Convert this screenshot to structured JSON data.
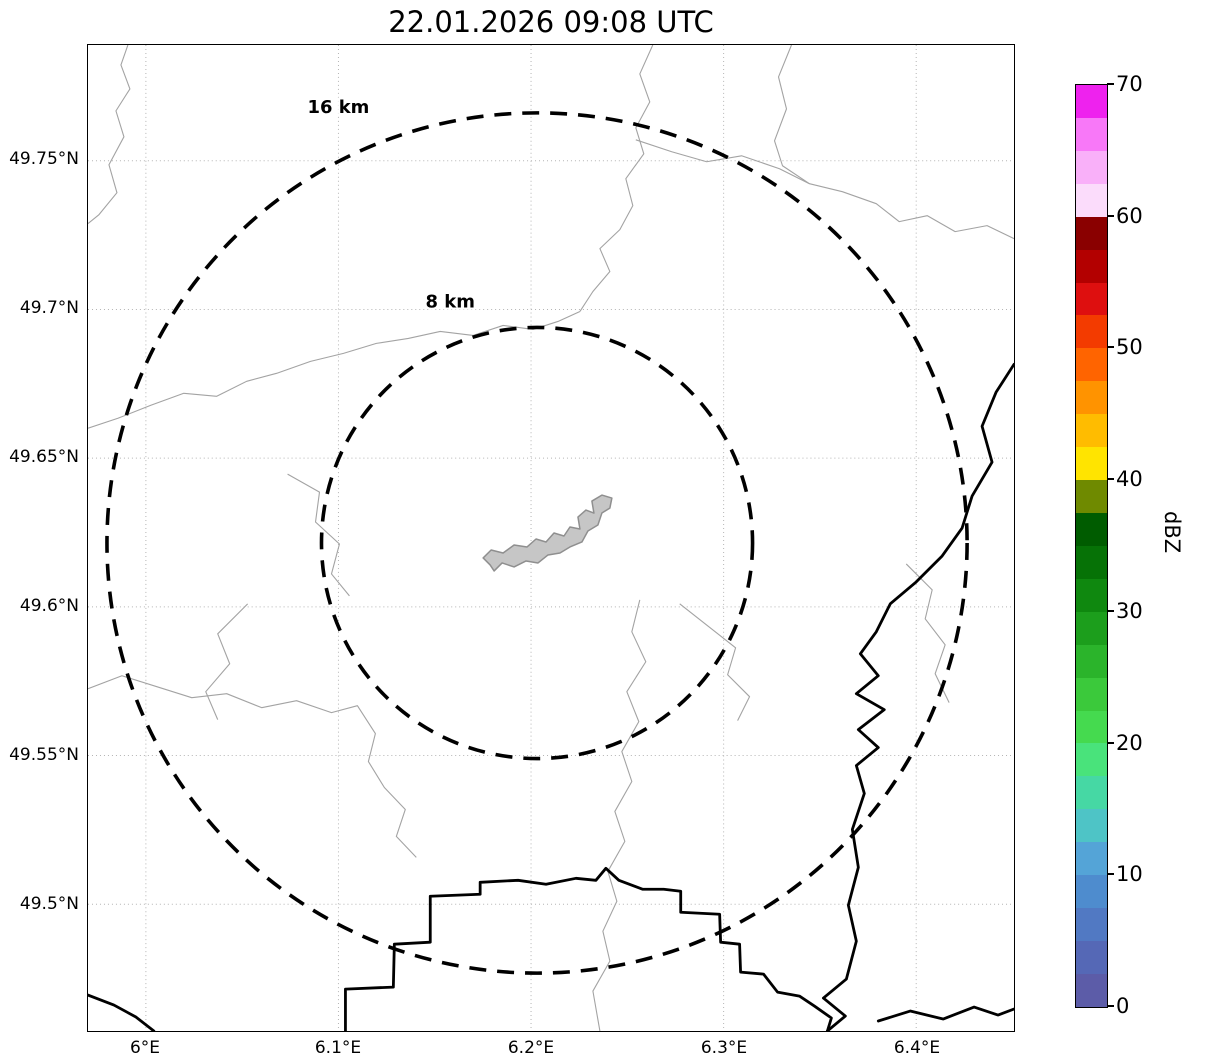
{
  "chart_data": {
    "type": "heatmap",
    "title": "22.01.2026 09:08 UTC",
    "subtitle": "",
    "description": "Weather radar reflectivity display over a lat/lon map; no reflectivity echoes visible (clear image). Dashed range rings at 8 km and 16 km around radar site near 6.2E / 49.62N, gray urban boundary polygon at center, thin gray administrative borders and thick black country-border/river lines.",
    "x_ticks": [
      "6°E",
      "6.1°E",
      "6.2°E",
      "6.3°E",
      "6.4°E"
    ],
    "y_ticks": [
      "49.75°N",
      "49.7°N",
      "49.65°N",
      "49.6°N",
      "49.55°N",
      "49.5°N"
    ],
    "grid": true,
    "range_rings": [
      {
        "label": "16 km",
        "radius_km": 16
      },
      {
        "label": "8 km",
        "radius_km": 8
      }
    ],
    "colorbar": {
      "label": "dBZ",
      "min": 0,
      "max": 70,
      "ticks": [
        70,
        60,
        50,
        40,
        30,
        20,
        10,
        0
      ],
      "step_dbz": 2.5,
      "colors_bottom_to_top": [
        "#5c5ca8",
        "#5568b6",
        "#5179c3",
        "#4e8cce",
        "#54a4d7",
        "#4ec4c6",
        "#46d8a4",
        "#49e37b",
        "#45da4f",
        "#3bc93b",
        "#2bb42b",
        "#1c9e1c",
        "#0f880f",
        "#067206",
        "#005c00",
        "#6f8a00",
        "#ffe400",
        "#ffbc00",
        "#ff9300",
        "#ff6400",
        "#f33b00",
        "#de0f0f",
        "#b30000",
        "#8a0000",
        "#fbdcfb",
        "#f9b0f9",
        "#f878f8",
        "#ee22ee"
      ]
    }
  }
}
